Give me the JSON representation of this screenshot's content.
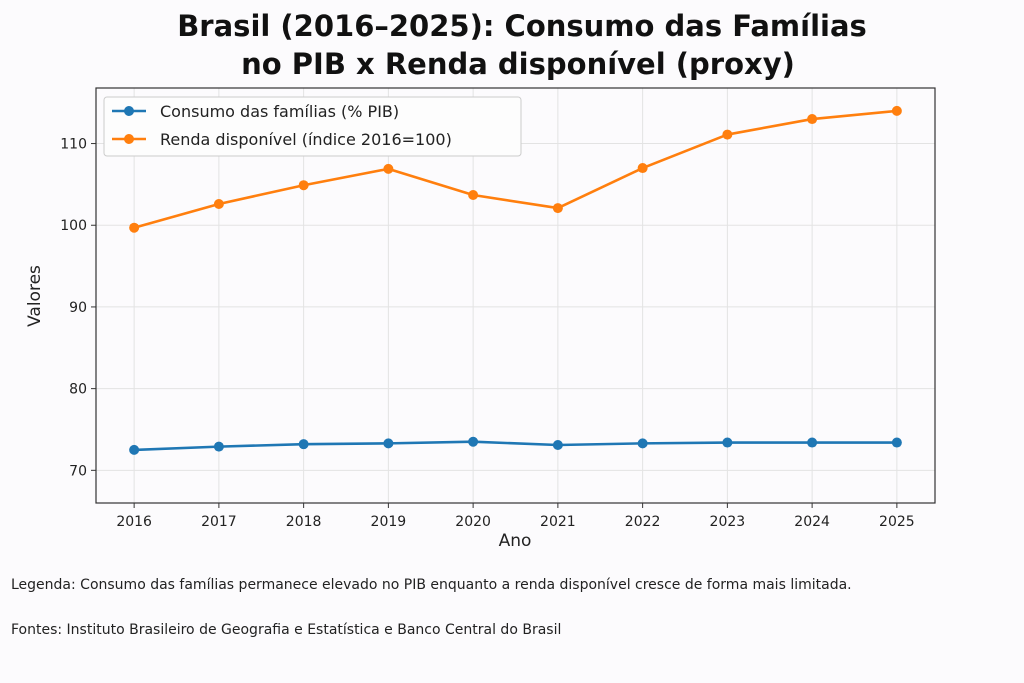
{
  "chart_data": {
    "type": "line",
    "title_lines": [
      "Brasil (2016–2025): Consumo das Famílias",
      "no PIB x Renda disponível (proxy)"
    ],
    "xlabel": "Ano",
    "ylabel": "Valores",
    "x": [
      2016,
      2017,
      2018,
      2019,
      2020,
      2021,
      2022,
      2023,
      2024,
      2025
    ],
    "x_tick_labels": [
      "2016",
      "2017",
      "2018",
      "2019",
      "2020",
      "2021",
      "2022",
      "2023",
      "2024",
      "2025"
    ],
    "y_ticks": [
      70,
      80,
      90,
      100,
      110
    ],
    "y_tick_labels": [
      "70",
      "80",
      "90",
      "100",
      "110"
    ],
    "xlim": [
      2015.55,
      2025.45
    ],
    "ylim": [
      66,
      116.8
    ],
    "grid": true,
    "legend_position": "top-left",
    "series": [
      {
        "name": "Consumo das famílias (% PIB)",
        "color": "#1f77b4",
        "values": [
          72.5,
          72.9,
          73.2,
          73.3,
          73.5,
          73.1,
          73.3,
          73.4,
          73.4,
          73.4
        ]
      },
      {
        "name": "Renda disponível (índice 2016=100)",
        "color": "#ff7f0e",
        "values": [
          99.7,
          102.6,
          104.9,
          106.9,
          103.7,
          102.1,
          107.0,
          111.1,
          113.0,
          114.0
        ]
      }
    ]
  },
  "notes": {
    "legend_text": "Legenda: Consumo das famílias permanece elevado no PIB enquanto a renda disponível cresce de forma mais limitada.",
    "sources": "Fontes: Instituto Brasileiro de Geografia e Estatística e Banco Central do Brasil"
  }
}
